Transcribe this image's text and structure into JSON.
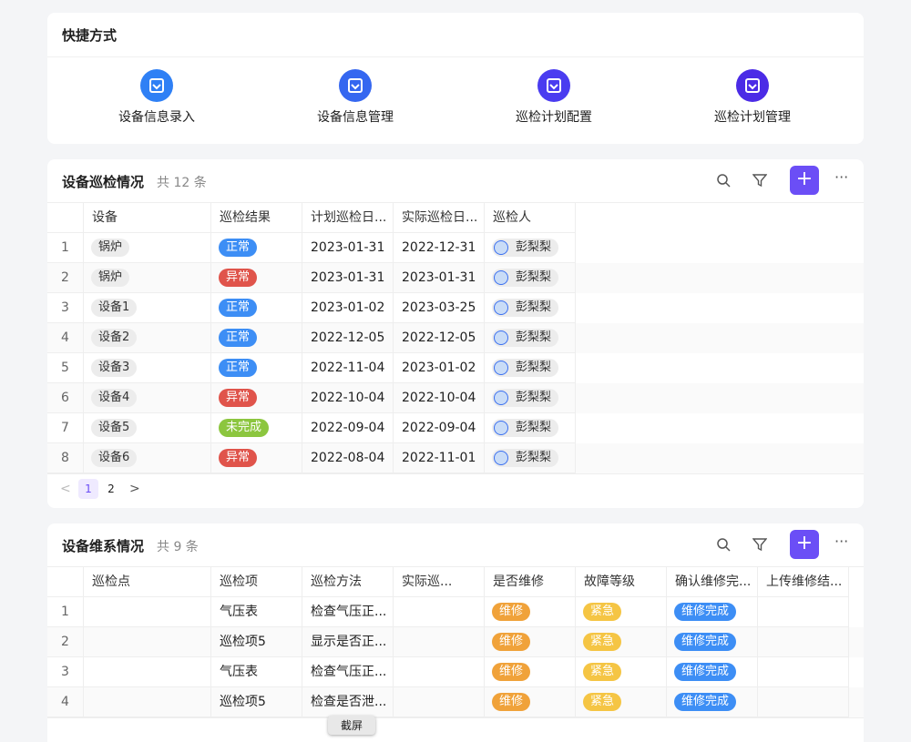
{
  "shortcuts": {
    "title": "快捷方式",
    "items": [
      {
        "label": "设备信息录入",
        "color": "#2f80f5"
      },
      {
        "label": "设备信息管理",
        "color": "#3567f0"
      },
      {
        "label": "巡检计划配置",
        "color": "#4a3cf0"
      },
      {
        "label": "巡检计划管理",
        "color": "#4b2be6"
      }
    ]
  },
  "table1": {
    "title": "设备巡检情况",
    "count": "共 12 条",
    "columns": [
      "设备",
      "巡检结果",
      "计划巡检日...",
      "实际巡检日...",
      "巡检人"
    ],
    "rows": [
      [
        "1",
        {
          "text": "锅炉",
          "color": "#ececec"
        },
        {
          "text": "正常",
          "color": "#3d8ef5"
        },
        "2023-01-31",
        "2022-12-31",
        {
          "text": "彭梨梨",
          "color": "#ececec",
          "avatar": true
        }
      ],
      [
        "2",
        {
          "text": "锅炉",
          "color": "#ececec"
        },
        {
          "text": "异常",
          "color": "#e0544b"
        },
        "2023-01-31",
        "2023-01-31",
        {
          "text": "彭梨梨",
          "color": "#ececec",
          "avatar": true
        }
      ],
      [
        "3",
        {
          "text": "设备1",
          "color": "#ececec"
        },
        {
          "text": "正常",
          "color": "#3d8ef5"
        },
        "2023-01-02",
        "2023-03-25",
        {
          "text": "彭梨梨",
          "color": "#ececec",
          "avatar": true
        }
      ],
      [
        "4",
        {
          "text": "设备2",
          "color": "#ececec"
        },
        {
          "text": "正常",
          "color": "#3d8ef5"
        },
        "2022-12-05",
        "2022-12-05",
        {
          "text": "彭梨梨",
          "color": "#ececec",
          "avatar": true
        }
      ],
      [
        "5",
        {
          "text": "设备3",
          "color": "#ececec"
        },
        {
          "text": "正常",
          "color": "#3d8ef5"
        },
        "2022-11-04",
        "2023-01-02",
        {
          "text": "彭梨梨",
          "color": "#ececec",
          "avatar": true
        }
      ],
      [
        "6",
        {
          "text": "设备4",
          "color": "#ececec"
        },
        {
          "text": "异常",
          "color": "#e0544b"
        },
        "2022-10-04",
        "2022-10-04",
        {
          "text": "彭梨梨",
          "color": "#ececec",
          "avatar": true
        }
      ],
      [
        "7",
        {
          "text": "设备5",
          "color": "#ececec"
        },
        {
          "text": "未完成",
          "color": "#8cc63f"
        },
        "2022-09-04",
        "2022-09-04",
        {
          "text": "彭梨梨",
          "color": "#ececec",
          "avatar": true
        }
      ],
      [
        "8",
        {
          "text": "设备6",
          "color": "#ececec"
        },
        {
          "text": "异常",
          "color": "#e0544b"
        },
        "2022-08-04",
        "2022-11-01",
        {
          "text": "彭梨梨",
          "color": "#ececec",
          "avatar": true
        }
      ]
    ],
    "pages": [
      "1",
      "2"
    ]
  },
  "table2": {
    "title": "设备维系情况",
    "count": "共 9 条",
    "columns": [
      "巡检点",
      "巡检项",
      "巡检方法",
      "实际巡...",
      "是否维修",
      "故障等级",
      "确认维修完...",
      "上传维修结..."
    ],
    "rows": [
      [
        "1",
        "",
        "气压表",
        "检查气压正...",
        "",
        {
          "text": "维修",
          "color": "#f0a23a"
        },
        {
          "text": "紧急",
          "color": "#f5c544"
        },
        {
          "text": "维修完成",
          "color": "#3d8ef5"
        },
        ""
      ],
      [
        "2",
        "",
        "巡检项5",
        "显示是否正...",
        "",
        {
          "text": "维修",
          "color": "#f0a23a"
        },
        {
          "text": "紧急",
          "color": "#f5c544"
        },
        {
          "text": "维修完成",
          "color": "#3d8ef5"
        },
        ""
      ],
      [
        "3",
        "",
        "气压表",
        "检查气压正...",
        "",
        {
          "text": "维修",
          "color": "#f0a23a"
        },
        {
          "text": "紧急",
          "color": "#f5c544"
        },
        {
          "text": "维修完成",
          "color": "#3d8ef5"
        },
        ""
      ],
      [
        "4",
        "",
        "巡检项5",
        "检查是否泄...",
        "",
        {
          "text": "维修",
          "color": "#f0a23a"
        },
        {
          "text": "紧急",
          "color": "#f5c544"
        },
        {
          "text": "维修完成",
          "color": "#3d8ef5"
        },
        ""
      ]
    ]
  },
  "tooltip": "截屏"
}
